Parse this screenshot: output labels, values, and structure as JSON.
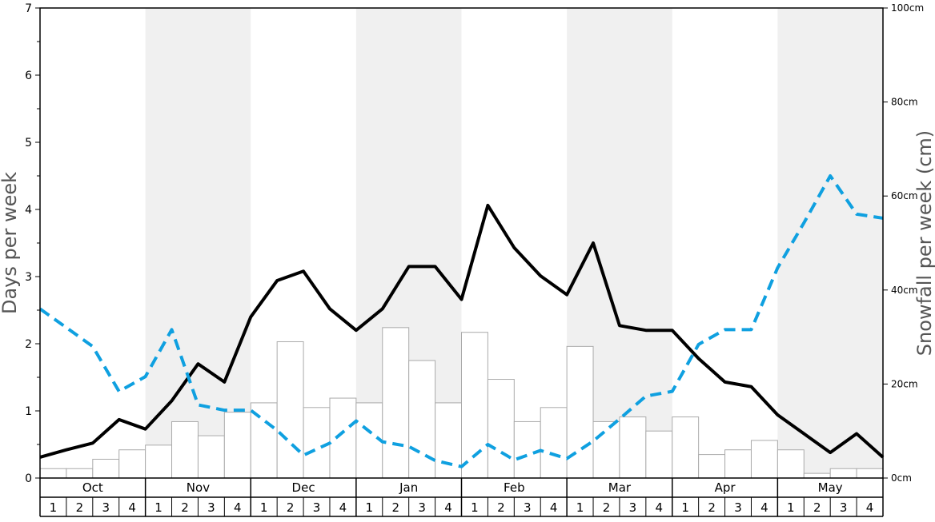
{
  "chart_data": {
    "type": "bar",
    "xlabel": "",
    "ylabel": "Days per week",
    "ylabel_right": "Snowfall per week (cm)",
    "ylim": [
      0,
      7
    ],
    "ylim_right": [
      0,
      100
    ],
    "yticks": [
      "0",
      "1",
      "2",
      "3",
      "4",
      "5",
      "6",
      "7"
    ],
    "yticks_right": [
      "0cm",
      "20cm",
      "40cm",
      "60cm",
      "80cm",
      "100cm"
    ],
    "months": [
      "Oct",
      "Nov",
      "Dec",
      "Jan",
      "Feb",
      "Mar",
      "Apr",
      "May"
    ],
    "weeks": [
      "1",
      "2",
      "3",
      "4"
    ],
    "shaded_months": [
      "Nov",
      "Jan",
      "Mar",
      "May"
    ],
    "grid": false,
    "colors": {
      "bars_fill": "#ffffff",
      "bars_stroke": "#aaaaaa",
      "solid_line": "#000000",
      "dashed_line": "#0fa0e0",
      "shading": "#f0f0f0"
    },
    "series": [
      {
        "kind": "bar",
        "axis": "right",
        "values": [
          2,
          2,
          4,
          6,
          7,
          12,
          9,
          14,
          16,
          29,
          15,
          17,
          16,
          32,
          25,
          16,
          31,
          21,
          12,
          15,
          28,
          12,
          13,
          10,
          13,
          5,
          6,
          8,
          6,
          1,
          2,
          2
        ]
      },
      {
        "kind": "line",
        "style": "solid",
        "axis": "left",
        "values": [
          0.31,
          0.42,
          0.52,
          0.87,
          0.73,
          1.15,
          1.7,
          1.43,
          2.4,
          2.94,
          3.08,
          2.52,
          2.2,
          2.52,
          3.15,
          3.15,
          2.66,
          4.06,
          3.43,
          3.01,
          2.73,
          3.5,
          2.27,
          2.2,
          2.2,
          1.78,
          1.43,
          1.36,
          0.94,
          0.66,
          0.38,
          0.66,
          0.31
        ]
      },
      {
        "kind": "line",
        "style": "dashed",
        "axis": "left",
        "values": [
          2.52,
          2.24,
          1.96,
          1.29,
          1.51,
          2.21,
          1.09,
          1.01,
          1.01,
          0.71,
          0.34,
          0.52,
          0.85,
          0.54,
          0.47,
          0.26,
          0.17,
          0.5,
          0.27,
          0.41,
          0.29,
          0.55,
          0.88,
          1.22,
          1.29,
          1.99,
          2.21,
          2.21,
          3.13,
          3.8,
          4.5,
          3.93,
          3.87
        ]
      }
    ]
  }
}
